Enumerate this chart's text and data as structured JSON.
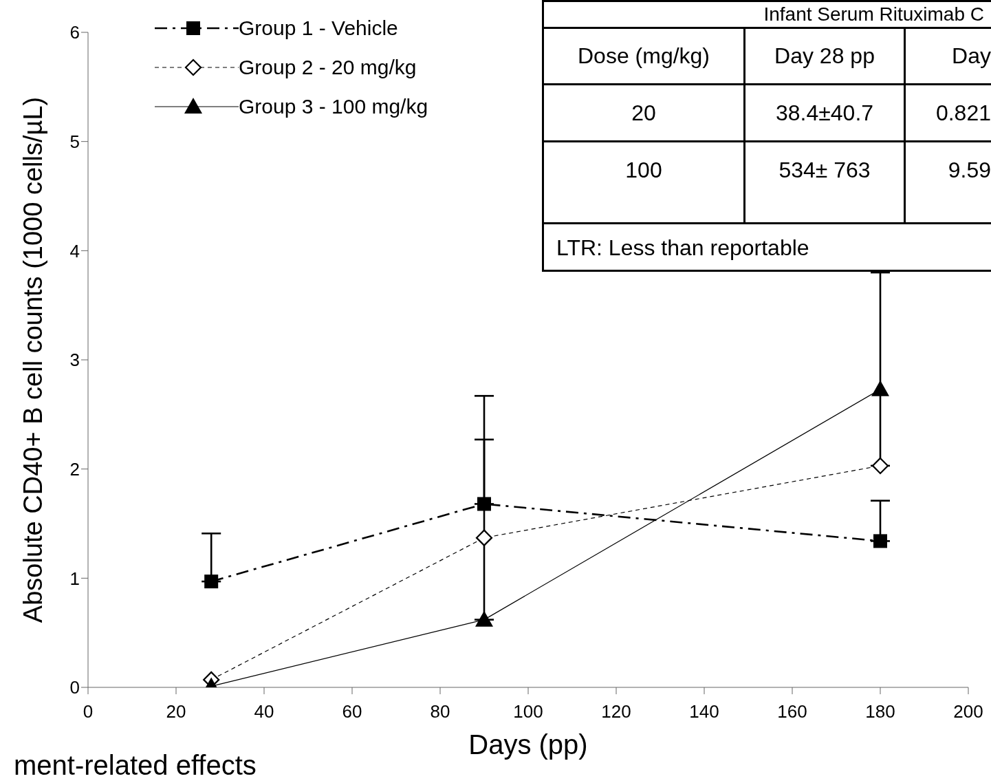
{
  "chart_data": {
    "type": "line",
    "xlabel": "Days (pp)",
    "ylabel": "Absolute CD40+ B cell counts (1000 cells/µL)",
    "x": [
      28,
      90,
      180
    ],
    "series": [
      {
        "name": "Group 1 - Vehicle",
        "color": "#000000",
        "marker": "square",
        "line_style": "dashdot",
        "values": [
          0.97,
          1.68,
          1.34
        ],
        "errors": [
          [
            0.97,
            1.41
          ],
          [
            1.68,
            2.67
          ],
          [
            1.34,
            1.71
          ]
        ]
      },
      {
        "name": "Group 2 - 20 mg/kg",
        "color": "#000000",
        "marker": "diamond",
        "line_style": "dashed",
        "values": [
          0.07,
          1.37,
          2.03
        ],
        "errors": [
          null,
          null,
          [
            2.03,
            3.8
          ]
        ]
      },
      {
        "name": "Group 3 - 100 mg/kg",
        "color": "#000000",
        "marker": "triangle",
        "line_style": "solid",
        "values": [
          0.01,
          0.62,
          2.73
        ],
        "errors": [
          null,
          [
            0.62,
            2.27
          ],
          null
        ]
      }
    ],
    "xlim": [
      0,
      200
    ],
    "xticks": [
      0,
      20,
      40,
      60,
      80,
      100,
      120,
      140,
      160,
      180,
      200
    ],
    "ylim": [
      0,
      6
    ],
    "yticks": [
      0,
      1,
      2,
      3,
      4,
      5,
      6
    ],
    "grid": false,
    "legend": "top left",
    "annotations": [
      "Infant Serum Rituximab C",
      "Dose (mg/kg)",
      "Day 28 pp",
      "Day",
      "20",
      "38.4±40.7",
      "0.821",
      "100",
      "534± 763",
      "9.59",
      "LTR: Less than reportable",
      "ment-related effects"
    ]
  }
}
